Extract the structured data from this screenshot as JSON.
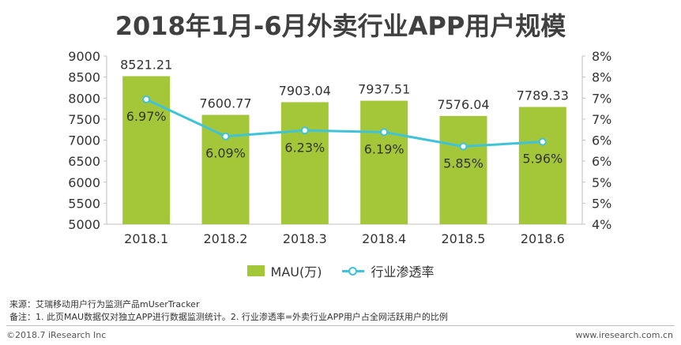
{
  "colors": {
    "bar": "#a4c639",
    "line": "#3fc3d8",
    "axis": "#bfbfbf",
    "text": "#333333"
  },
  "chart_data": {
    "type": "bar",
    "title": "2018年1月-6月外卖行业APP用户规模",
    "categories": [
      "2018.1",
      "2018.2",
      "2018.3",
      "2018.4",
      "2018.5",
      "2018.6"
    ],
    "series": [
      {
        "name": "MAU(万)",
        "type": "bar",
        "axis": "left",
        "values": [
          8521.21,
          7600.77,
          7903.04,
          7937.51,
          7576.04,
          7789.33
        ],
        "labels": [
          "8521.21",
          "7600.77",
          "7903.04",
          "7937.51",
          "7576.04",
          "7789.33"
        ]
      },
      {
        "name": "行业渗透率",
        "type": "line",
        "axis": "right",
        "values": [
          6.97,
          6.09,
          6.23,
          6.19,
          5.85,
          5.96
        ],
        "labels": [
          "6.97%",
          "6.09%",
          "6.23%",
          "6.19%",
          "5.85%",
          "5.96%"
        ]
      }
    ],
    "left_axis": {
      "ylim": [
        5000,
        9000
      ],
      "ticks": [
        "9000",
        "8500",
        "8000",
        "7500",
        "7000",
        "6500",
        "6000",
        "5500",
        "5000"
      ]
    },
    "right_axis": {
      "ylim": [
        4,
        8
      ],
      "ticks": [
        "8%",
        "8%",
        "7%",
        "7%",
        "6%",
        "6%",
        "5%",
        "5%",
        "4%"
      ]
    },
    "legend": "bottom"
  },
  "notes": {
    "source": "来源：艾瑞移动用户行为监测产品mUserTracker",
    "remark": "备注：1. 此页MAU数据仅对独立APP进行数据监测统计。2. 行业渗透率=外卖行业APP用户占全网活跃用户的比例"
  },
  "footer": {
    "copyright": "©2018.7 iResearch Inc",
    "website": "www.iresearch.com.cn"
  }
}
